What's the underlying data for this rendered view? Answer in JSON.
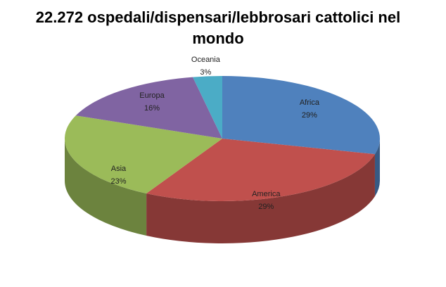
{
  "chart_data": {
    "type": "pie",
    "title": "22.272 ospedali/dispensari/lebbrosari cattolici nel mondo",
    "categories": [
      "Africa",
      "America",
      "Asia",
      "Europa",
      "Oceania"
    ],
    "values": [
      29,
      29,
      23,
      16,
      3
    ],
    "value_labels": [
      "29%",
      "29%",
      "23%",
      "16%",
      "3%"
    ],
    "colors": [
      "#4f81bd",
      "#c0504d",
      "#9bbb59",
      "#8064a2",
      "#4bacc6"
    ]
  }
}
